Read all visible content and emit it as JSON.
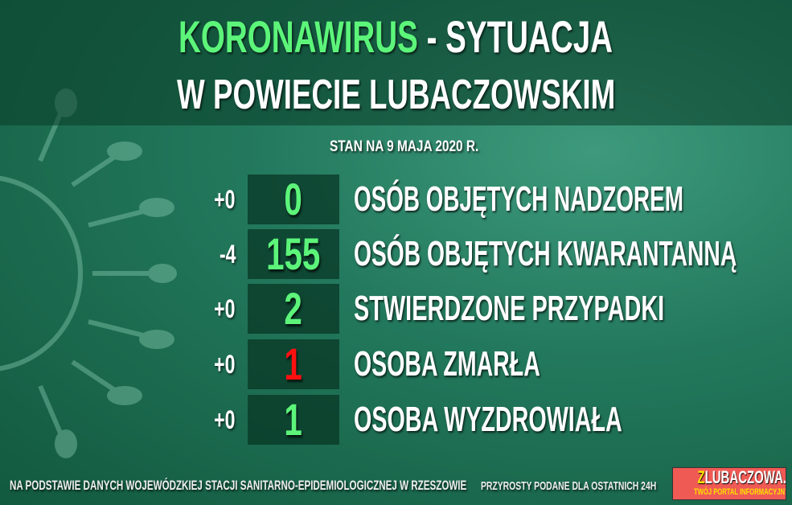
{
  "title": {
    "highlight": "KORONAWIRUS",
    "rest": " - SYTUACJA",
    "line2": "W POWIECIE LUBACZOWSKIM"
  },
  "date": "STAN NA 9 MAJA 2020 R.",
  "rows": [
    {
      "delta": "+0",
      "value": "0",
      "label": "OSÓB OBJĘTYCH NADZOREM",
      "color": "#5cf57a"
    },
    {
      "delta": "-4",
      "value": "155",
      "label": "OSÓB OBJĘTYCH KWARANTANNĄ",
      "color": "#5cf57a"
    },
    {
      "delta": "+0",
      "value": "2",
      "label": "STWIERDZONE PRZYPADKI",
      "color": "#5cf57a"
    },
    {
      "delta": "+0",
      "value": "1",
      "label": "OSOBA ZMARŁA",
      "color": "#ff1010"
    },
    {
      "delta": "+0",
      "value": "1",
      "label": "OSOBA WYZDROWIAŁA",
      "color": "#5cf57a"
    }
  ],
  "footer": {
    "source": "NA PODSTAWIE DANYCH WOJEWÓDZKIEJ STACJI SANITARNO-EPIDEMIOLOGICZNEJ W RZESZOWIE",
    "note": "PRZYROSTY PODANE DLA OSTATNICH 24H"
  },
  "logo": {
    "first": "Z",
    "rest": "LUBACZOWA.PL",
    "tagline": "TWÓJ PORTAL INFORMACYJNY"
  }
}
